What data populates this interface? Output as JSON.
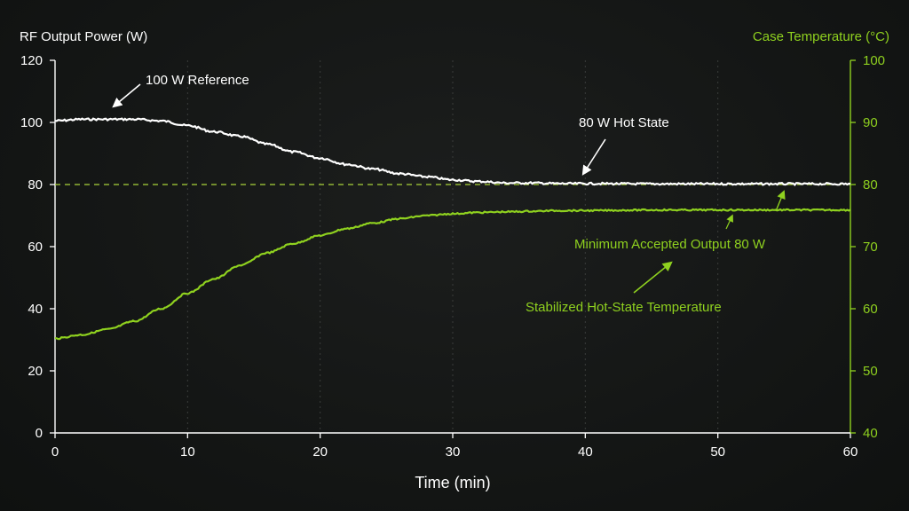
{
  "colors": {
    "background": "#151716",
    "left_axis": "#ffffff",
    "right_axis": "#8fd11f",
    "power_series": "#ffffff",
    "temperature_series": "#8fd11f",
    "threshold": "#a9d33a",
    "grid": "#3a3c3b"
  },
  "chart_data": {
    "type": "line",
    "xlabel": "Time (min)",
    "ylabel_left": "RF Output Power (W)",
    "ylabel_right": "Case Temperature (°C)",
    "xlim": [
      0,
      60
    ],
    "ylim_left": [
      0,
      120
    ],
    "ylim_right": [
      40,
      100
    ],
    "x_ticks": [
      "0",
      "10",
      "20",
      "30",
      "40",
      "50",
      "60"
    ],
    "y_ticks_left": [
      "0",
      "20",
      "40",
      "60",
      "80",
      "100",
      "120"
    ],
    "y_ticks_right": [
      "40",
      "50",
      "60",
      "70",
      "80",
      "90",
      "100"
    ],
    "grid": "vertical dotted",
    "series": [
      {
        "axis": "left",
        "x": [
          0,
          2,
          4,
          6,
          8,
          10,
          12,
          14,
          16,
          18,
          20,
          22,
          24,
          26,
          28,
          30,
          32,
          34,
          36,
          38,
          40,
          45,
          50,
          55,
          60
        ],
        "values": [
          100.5,
          101,
          101,
          101,
          100.5,
          99,
          97,
          95.5,
          93,
          90.5,
          88.5,
          86.5,
          85,
          83.5,
          82.5,
          81.5,
          81,
          80.5,
          80.5,
          80.3,
          80.3,
          80.2,
          80.2,
          80.2,
          80.2
        ]
      },
      {
        "axis": "right",
        "x": [
          0,
          2,
          4,
          6,
          8,
          10,
          12,
          14,
          16,
          18,
          20,
          22,
          24,
          26,
          28,
          30,
          32,
          34,
          36,
          38,
          40,
          45,
          50,
          55,
          60
        ],
        "values": [
          55.2,
          55.8,
          56.7,
          58.0,
          60.0,
          62.5,
          64.8,
          67.0,
          69.0,
          70.5,
          71.8,
          72.9,
          73.8,
          74.5,
          75.0,
          75.3,
          75.5,
          75.6,
          75.7,
          75.8,
          75.8,
          75.9,
          75.9,
          75.9,
          75.9
        ]
      }
    ],
    "threshold": {
      "axis": "left",
      "value": 80
    },
    "annotations": [
      {
        "text": "100 W Reference",
        "target_x": 4.5,
        "target_y": 101,
        "axis": "left"
      },
      {
        "text": "80 W Hot State",
        "target_x": 39.5,
        "target_y": 80.5,
        "axis": "left"
      },
      {
        "text": "Minimum Accepted Output 80 W",
        "target_x": 55,
        "target_y": 80,
        "axis": "left"
      },
      {
        "text": "Stabilized Hot-State Temperature",
        "target_x": 46,
        "target_y": 77,
        "axis": "right"
      }
    ]
  }
}
